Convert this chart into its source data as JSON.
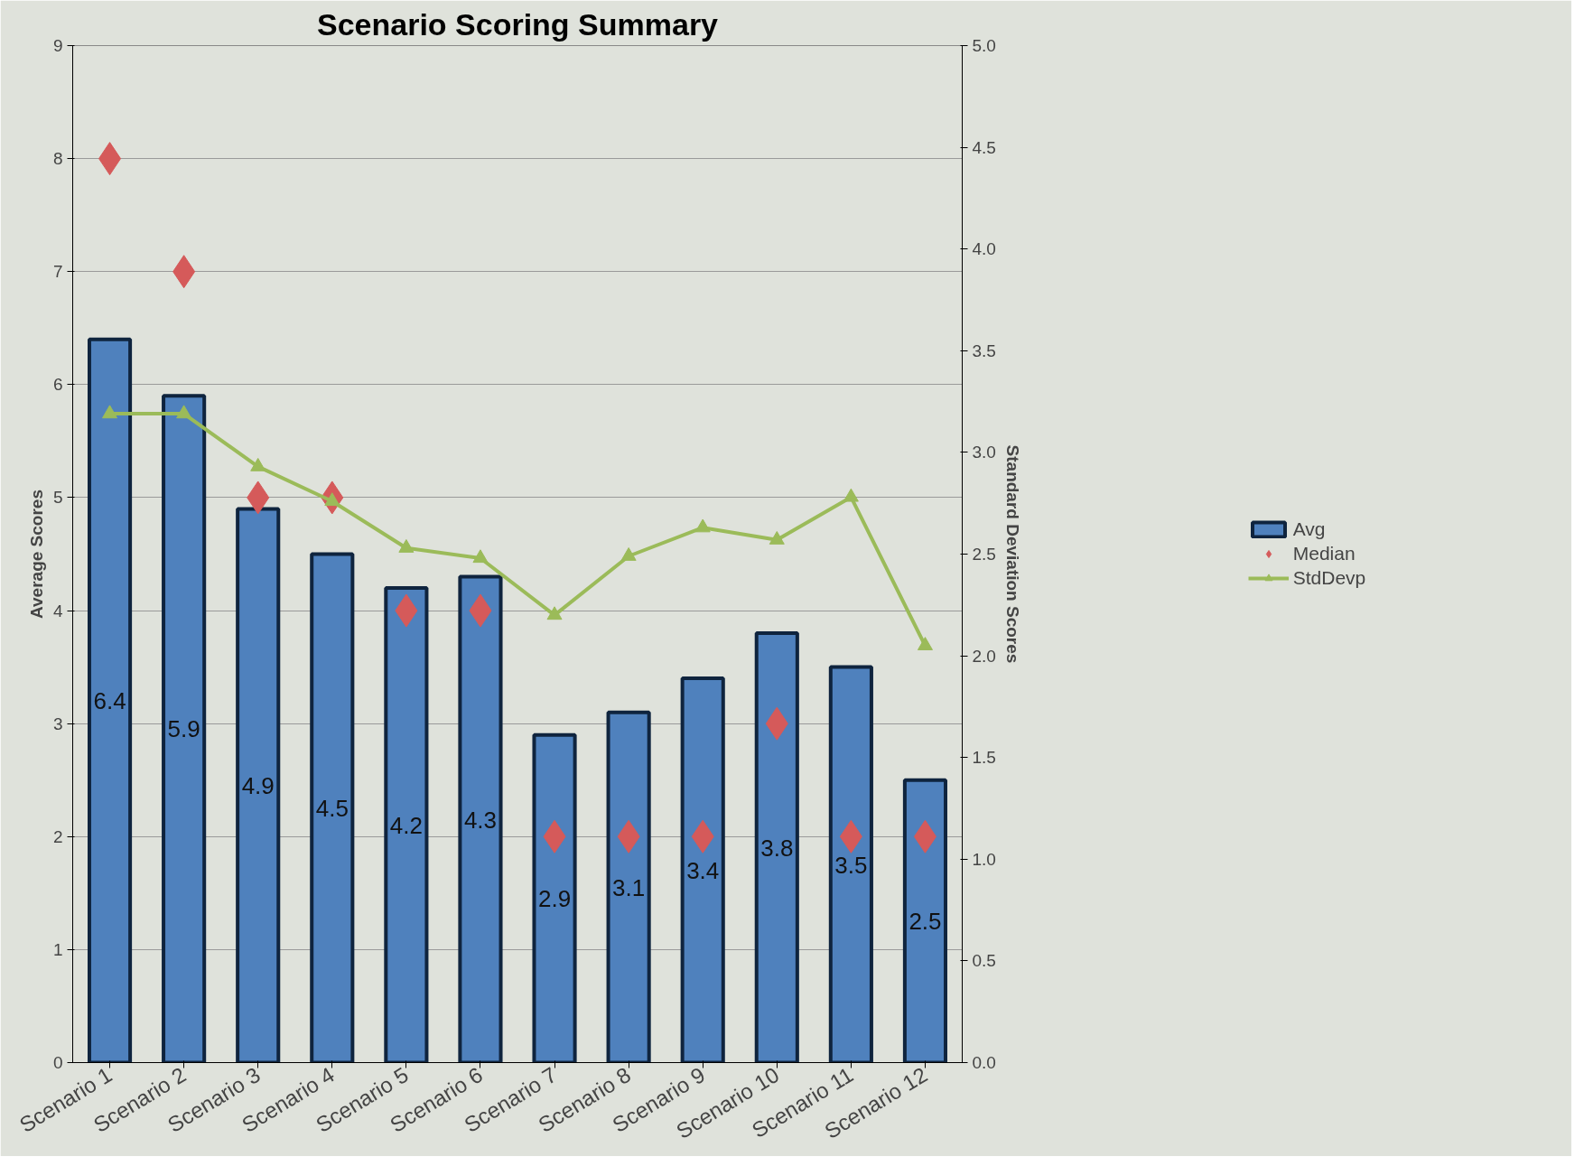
{
  "chart_data": {
    "type": "bar",
    "title": "Scenario Scoring Summary",
    "ylabel": "Average Scores",
    "y2label": "Standard Deviation Scores",
    "categories": [
      "Scenario 1",
      "Scenario 2",
      "Scenario 3",
      "Scenario 4",
      "Scenario 5",
      "Scenario 6",
      "Scenario 7",
      "Scenario 8",
      "Scenario 9",
      "Scenario 10",
      "Scenario 11",
      "Scenario 12"
    ],
    "series": [
      {
        "name": "Avg",
        "color": "#4f81bd",
        "values": [
          6.4,
          5.9,
          4.9,
          4.5,
          4.2,
          4.3,
          2.9,
          3.1,
          3.4,
          3.8,
          3.5,
          2.5
        ],
        "value_labels": [
          "6.4",
          "5.9",
          "4.9",
          "4.5",
          "4.2",
          "4.3",
          "2.9",
          "3.1",
          "3.4",
          "3.8",
          "3.5",
          "2.5"
        ]
      },
      {
        "name": "Median",
        "type": "scatter",
        "marker": "diamond",
        "color": "#d55a5a",
        "values": [
          8,
          7,
          5,
          5,
          4,
          4,
          2,
          2,
          2,
          3,
          2,
          2
        ]
      },
      {
        "name": "StdDevp",
        "type": "line",
        "marker": "triangle",
        "axis": "y2",
        "color": "#9bbb59",
        "values": [
          3.19,
          3.19,
          2.93,
          2.76,
          2.53,
          2.48,
          2.2,
          2.49,
          2.63,
          2.57,
          2.78,
          2.05
        ]
      }
    ],
    "ylim": [
      0,
      9
    ],
    "yticks": [
      0,
      1,
      2,
      3,
      4,
      5,
      6,
      7,
      8,
      9
    ],
    "y2lim": [
      0,
      5
    ],
    "y2ticks": [
      {
        "value": 0,
        "label": "0.0"
      },
      {
        "value": 0.5,
        "label": "0.5"
      },
      {
        "value": 1,
        "label": "1.0"
      },
      {
        "value": 1.5,
        "label": "1.5"
      },
      {
        "value": 2,
        "label": "2.0"
      },
      {
        "value": 2.5,
        "label": "2.5"
      },
      {
        "value": 3,
        "label": "3.0"
      },
      {
        "value": 3.5,
        "label": "3.5"
      },
      {
        "value": 4,
        "label": "4.0"
      },
      {
        "value": 4.5,
        "label": "4.5"
      },
      {
        "value": 5,
        "label": "5.0"
      }
    ],
    "grid": "y",
    "legend": "right"
  }
}
